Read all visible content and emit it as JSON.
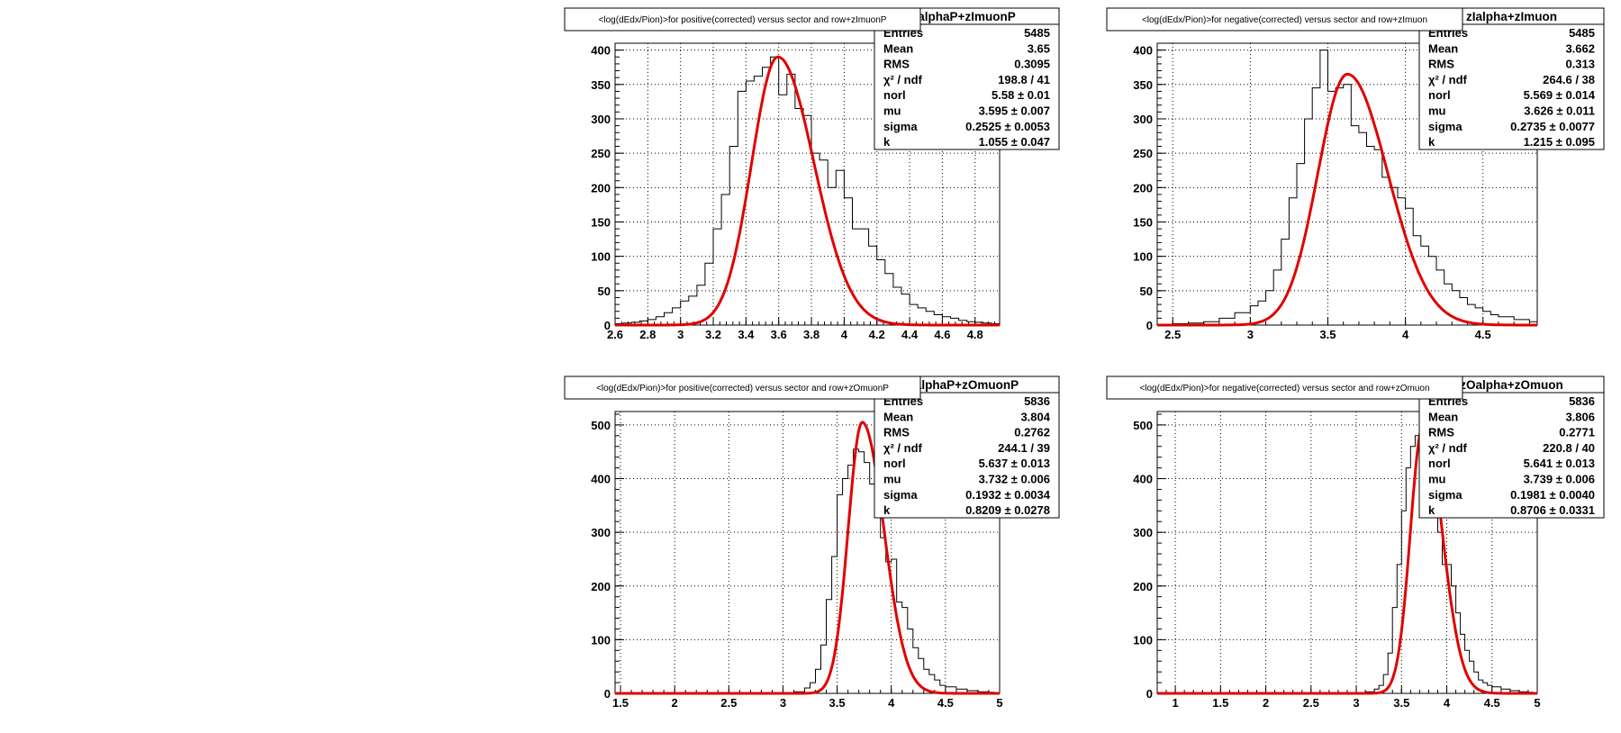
{
  "chart_data": [
    {
      "type": "histogram",
      "title": "<log(dEdx/Pion)>for positive(corrected) versus sector and row+zImuonP",
      "stats_name": "alphaP+zImuonP",
      "stats": [
        {
          "label": "Entries",
          "value": "5485"
        },
        {
          "label": "Mean",
          "value": "3.65"
        },
        {
          "label": "RMS",
          "value": "0.3095"
        },
        {
          "label": "χ² / ndf",
          "value": "198.8 / 41"
        },
        {
          "label": "norl",
          "value": "5.58 ± 0.01"
        },
        {
          "label": "mu",
          "value": "3.595 ± 0.007"
        },
        {
          "label": "sigma",
          "value": "0.2525 ± 0.0053"
        },
        {
          "label": "k",
          "value": "1.055 ± 0.047"
        }
      ],
      "xlim": [
        2.6,
        4.95
      ],
      "ylim": [
        0,
        410
      ],
      "xticks": [
        "2.6",
        "2.8",
        "3",
        "3.2",
        "3.4",
        "3.6",
        "3.8",
        "4",
        "4.2",
        "4.4",
        "4.6",
        "4.8"
      ],
      "yticks": [
        "0",
        "50",
        "100",
        "150",
        "200",
        "250",
        "300",
        "350",
        "400"
      ],
      "fit": {
        "peak": 390,
        "mu": 3.595,
        "sl": 0.16,
        "sr": 0.22
      },
      "bins": [
        [
          2.6,
          2
        ],
        [
          2.65,
          3
        ],
        [
          2.7,
          4
        ],
        [
          2.75,
          6
        ],
        [
          2.8,
          8
        ],
        [
          2.85,
          12
        ],
        [
          2.9,
          18
        ],
        [
          2.95,
          25
        ],
        [
          3.0,
          35
        ],
        [
          3.05,
          42
        ],
        [
          3.1,
          58
        ],
        [
          3.15,
          90
        ],
        [
          3.2,
          140
        ],
        [
          3.25,
          190
        ],
        [
          3.3,
          260
        ],
        [
          3.35,
          340
        ],
        [
          3.4,
          355
        ],
        [
          3.45,
          362
        ],
        [
          3.5,
          375
        ],
        [
          3.55,
          390
        ],
        [
          3.6,
          335
        ],
        [
          3.65,
          365
        ],
        [
          3.7,
          315
        ],
        [
          3.75,
          305
        ],
        [
          3.8,
          250
        ],
        [
          3.85,
          240
        ],
        [
          3.9,
          200
        ],
        [
          3.95,
          225
        ],
        [
          4.0,
          185
        ],
        [
          4.05,
          140
        ],
        [
          4.1,
          140
        ],
        [
          4.15,
          115
        ],
        [
          4.2,
          95
        ],
        [
          4.25,
          75
        ],
        [
          4.3,
          55
        ],
        [
          4.35,
          45
        ],
        [
          4.4,
          30
        ],
        [
          4.45,
          25
        ],
        [
          4.5,
          20
        ],
        [
          4.55,
          15
        ],
        [
          4.6,
          12
        ],
        [
          4.65,
          10
        ],
        [
          4.7,
          7
        ],
        [
          4.75,
          5
        ],
        [
          4.8,
          4
        ],
        [
          4.85,
          3
        ],
        [
          4.9,
          2
        ]
      ]
    },
    {
      "type": "histogram",
      "title": "<log(dEdx/Pion)>for negative(corrected) versus sector and row+zImuon",
      "stats_name": "zIalpha+zImuon",
      "stats": [
        {
          "label": "Entries",
          "value": "5485"
        },
        {
          "label": "Mean",
          "value": "3.662"
        },
        {
          "label": "RMS",
          "value": "0.313"
        },
        {
          "label": "χ² / ndf",
          "value": "264.6 / 38"
        },
        {
          "label": "norl",
          "value": "5.569 ± 0.014"
        },
        {
          "label": "mu",
          "value": "3.626 ± 0.011"
        },
        {
          "label": "sigma",
          "value": "0.2735 ± 0.0077"
        },
        {
          "label": "k",
          "value": "1.215 ± 0.095"
        }
      ],
      "xlim": [
        2.4,
        4.85
      ],
      "ylim": [
        0,
        410
      ],
      "xticks": [
        "2.5",
        "3",
        "3.5",
        "4",
        "4.5"
      ],
      "yticks": [
        "0",
        "50",
        "100",
        "150",
        "200",
        "250",
        "300",
        "350",
        "400"
      ],
      "fit": {
        "peak": 365,
        "mu": 3.626,
        "sl": 0.19,
        "sr": 0.26
      },
      "bins": [
        [
          2.4,
          1
        ],
        [
          2.5,
          2
        ],
        [
          2.6,
          3
        ],
        [
          2.7,
          5
        ],
        [
          2.8,
          10
        ],
        [
          2.9,
          18
        ],
        [
          3.0,
          28
        ],
        [
          3.05,
          35
        ],
        [
          3.1,
          50
        ],
        [
          3.15,
          80
        ],
        [
          3.2,
          125
        ],
        [
          3.25,
          185
        ],
        [
          3.3,
          235
        ],
        [
          3.35,
          300
        ],
        [
          3.4,
          345
        ],
        [
          3.45,
          400
        ],
        [
          3.5,
          340
        ],
        [
          3.55,
          345
        ],
        [
          3.6,
          350
        ],
        [
          3.65,
          290
        ],
        [
          3.7,
          280
        ],
        [
          3.75,
          260
        ],
        [
          3.8,
          255
        ],
        [
          3.85,
          215
        ],
        [
          3.9,
          200
        ],
        [
          3.95,
          185
        ],
        [
          4.0,
          170
        ],
        [
          4.05,
          130
        ],
        [
          4.1,
          115
        ],
        [
          4.15,
          100
        ],
        [
          4.2,
          80
        ],
        [
          4.25,
          60
        ],
        [
          4.3,
          50
        ],
        [
          4.35,
          40
        ],
        [
          4.4,
          30
        ],
        [
          4.45,
          25
        ],
        [
          4.5,
          20
        ],
        [
          4.55,
          15
        ],
        [
          4.6,
          12
        ],
        [
          4.7,
          8
        ],
        [
          4.8,
          5
        ]
      ]
    },
    {
      "type": "histogram",
      "title": "<log(dEdx/Pion)>for positive(corrected) versus sector and row+zOmuonP",
      "stats_name": "alphaP+zOmuonP",
      "stats": [
        {
          "label": "Entries",
          "value": "5836"
        },
        {
          "label": "Mean",
          "value": "3.804"
        },
        {
          "label": "RMS",
          "value": "0.2762"
        },
        {
          "label": "χ² / ndf",
          "value": "244.1 / 39"
        },
        {
          "label": "norl",
          "value": "5.637 ± 0.013"
        },
        {
          "label": "mu",
          "value": "3.732 ± 0.006"
        },
        {
          "label": "sigma",
          "value": "0.1932 ± 0.0034"
        },
        {
          "label": "k",
          "value": "0.8209 ± 0.0278"
        }
      ],
      "xlim": [
        1.45,
        5.0
      ],
      "ylim": [
        0,
        525
      ],
      "xticks": [
        "1.5",
        "2",
        "2.5",
        "3",
        "3.5",
        "4",
        "4.5",
        "5"
      ],
      "yticks": [
        "0",
        "100",
        "200",
        "300",
        "400",
        "500"
      ],
      "fit": {
        "peak": 505,
        "mu": 3.732,
        "sl": 0.13,
        "sr": 0.2
      },
      "bins": [
        [
          1.45,
          0
        ],
        [
          3.0,
          1
        ],
        [
          3.1,
          3
        ],
        [
          3.2,
          10
        ],
        [
          3.25,
          20
        ],
        [
          3.3,
          45
        ],
        [
          3.35,
          90
        ],
        [
          3.4,
          175
        ],
        [
          3.45,
          255
        ],
        [
          3.5,
          370
        ],
        [
          3.55,
          400
        ],
        [
          3.6,
          425
        ],
        [
          3.65,
          455
        ],
        [
          3.7,
          450
        ],
        [
          3.75,
          430
        ],
        [
          3.8,
          390
        ],
        [
          3.85,
          340
        ],
        [
          3.9,
          290
        ],
        [
          3.95,
          245
        ],
        [
          4.0,
          250
        ],
        [
          4.05,
          170
        ],
        [
          4.1,
          160
        ],
        [
          4.15,
          120
        ],
        [
          4.2,
          85
        ],
        [
          4.25,
          65
        ],
        [
          4.3,
          45
        ],
        [
          4.35,
          35
        ],
        [
          4.4,
          25
        ],
        [
          4.45,
          15
        ],
        [
          4.5,
          12
        ],
        [
          4.6,
          8
        ],
        [
          4.7,
          5
        ],
        [
          4.8,
          3
        ],
        [
          4.9,
          2
        ]
      ]
    },
    {
      "type": "histogram",
      "title": "<log(dEdx/Pion)>for negative(corrected) versus sector and row+zOmuon",
      "stats_name": "zOalpha+zOmuon",
      "stats": [
        {
          "label": "Entries",
          "value": "5836"
        },
        {
          "label": "Mean",
          "value": "3.806"
        },
        {
          "label": "RMS",
          "value": "0.2771"
        },
        {
          "label": "χ² / ndf",
          "value": "220.8 / 40"
        },
        {
          "label": "norl",
          "value": "5.641 ± 0.013"
        },
        {
          "label": "mu",
          "value": "3.739 ± 0.006"
        },
        {
          "label": "sigma",
          "value": "0.1981 ± 0.0040"
        },
        {
          "label": "k",
          "value": "0.8706 ± 0.0331"
        }
      ],
      "xlim": [
        0.8,
        5.0
      ],
      "ylim": [
        0,
        525
      ],
      "xticks": [
        "1",
        "1.5",
        "2",
        "2.5",
        "3",
        "3.5",
        "4",
        "4.5",
        "5"
      ],
      "yticks": [
        "0",
        "100",
        "200",
        "300",
        "400",
        "500"
      ],
      "fit": {
        "peak": 500,
        "mu": 3.739,
        "sl": 0.14,
        "sr": 0.21
      },
      "bins": [
        [
          0.8,
          0
        ],
        [
          3.0,
          1
        ],
        [
          3.1,
          3
        ],
        [
          3.2,
          8
        ],
        [
          3.25,
          15
        ],
        [
          3.3,
          35
        ],
        [
          3.35,
          75
        ],
        [
          3.4,
          160
        ],
        [
          3.45,
          240
        ],
        [
          3.5,
          340
        ],
        [
          3.55,
          420
        ],
        [
          3.6,
          460
        ],
        [
          3.65,
          480
        ],
        [
          3.7,
          500
        ],
        [
          3.75,
          470
        ],
        [
          3.8,
          400
        ],
        [
          3.85,
          340
        ],
        [
          3.9,
          300
        ],
        [
          3.95,
          240
        ],
        [
          4.0,
          240
        ],
        [
          4.05,
          200
        ],
        [
          4.1,
          150
        ],
        [
          4.15,
          110
        ],
        [
          4.2,
          80
        ],
        [
          4.25,
          60
        ],
        [
          4.3,
          40
        ],
        [
          4.35,
          25
        ],
        [
          4.4,
          20
        ],
        [
          4.45,
          15
        ],
        [
          4.5,
          12
        ],
        [
          4.6,
          8
        ],
        [
          4.7,
          5
        ],
        [
          4.8,
          3
        ],
        [
          4.9,
          2
        ]
      ]
    }
  ]
}
